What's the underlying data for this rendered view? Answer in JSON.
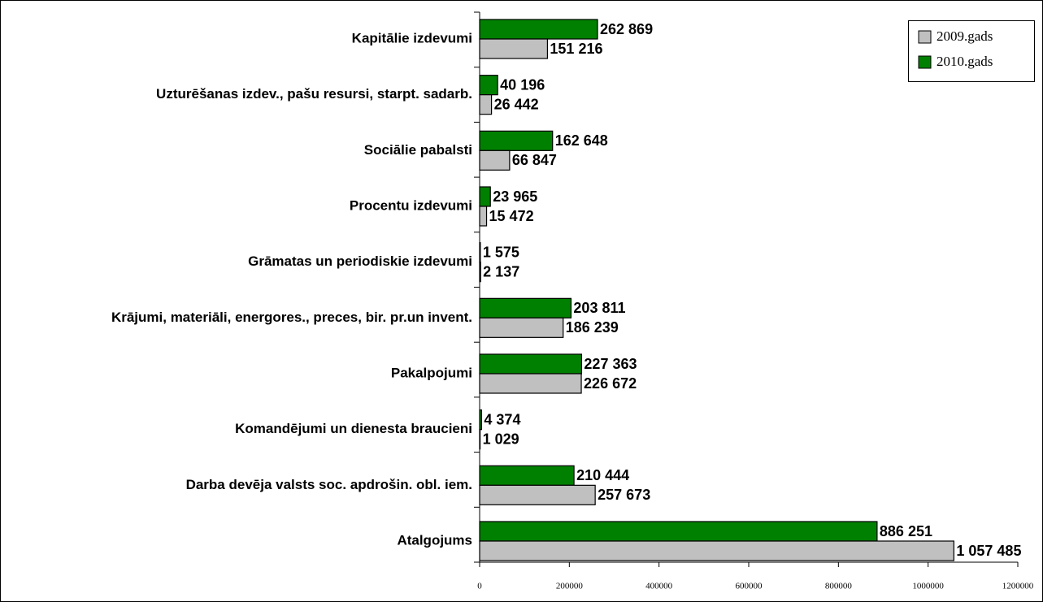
{
  "chart_data": {
    "type": "bar",
    "orientation": "horizontal",
    "categories": [
      "Kapitālie izdevumi",
      "Uzturēšanas izdev., pašu resursi, starpt. sadarb.",
      "Sociālie pabalsti",
      "Procentu izdevumi",
      "Grāmatas un periodiskie izdevumi",
      "Krājumi, materiāli, energores., preces, bir. pr.un invent.",
      "Pakalpojumi",
      "Komandējumi un dienesta braucieni",
      "Darba devēja valsts soc. apdrošin. obl. iem.",
      "Atalgojums"
    ],
    "series": [
      {
        "name": "2009.gads",
        "color": "#c0c0c0",
        "values": [
          151216,
          26442,
          66847,
          15472,
          2137,
          186239,
          226672,
          1029,
          257673,
          1057485
        ],
        "value_labels": [
          "151 216",
          "26 442",
          "66 847",
          "15 472",
          "2 137",
          "186 239",
          "226 672",
          "1 029",
          "257 673",
          "1 057 485"
        ]
      },
      {
        "name": "2010.gads",
        "color": "#008000",
        "values": [
          262869,
          40196,
          162648,
          23965,
          1575,
          203811,
          227363,
          4374,
          210444,
          886251
        ],
        "value_labels": [
          "262 869",
          "40 196",
          "162 648",
          "23 965",
          "1 575",
          "203 811",
          "227 363",
          "4 374",
          "210 444",
          "886 251"
        ]
      }
    ],
    "xlim": [
      0,
      1200000
    ],
    "xticks": [
      0,
      200000,
      400000,
      600000,
      800000,
      1000000,
      1200000
    ],
    "legend": "top-right"
  }
}
